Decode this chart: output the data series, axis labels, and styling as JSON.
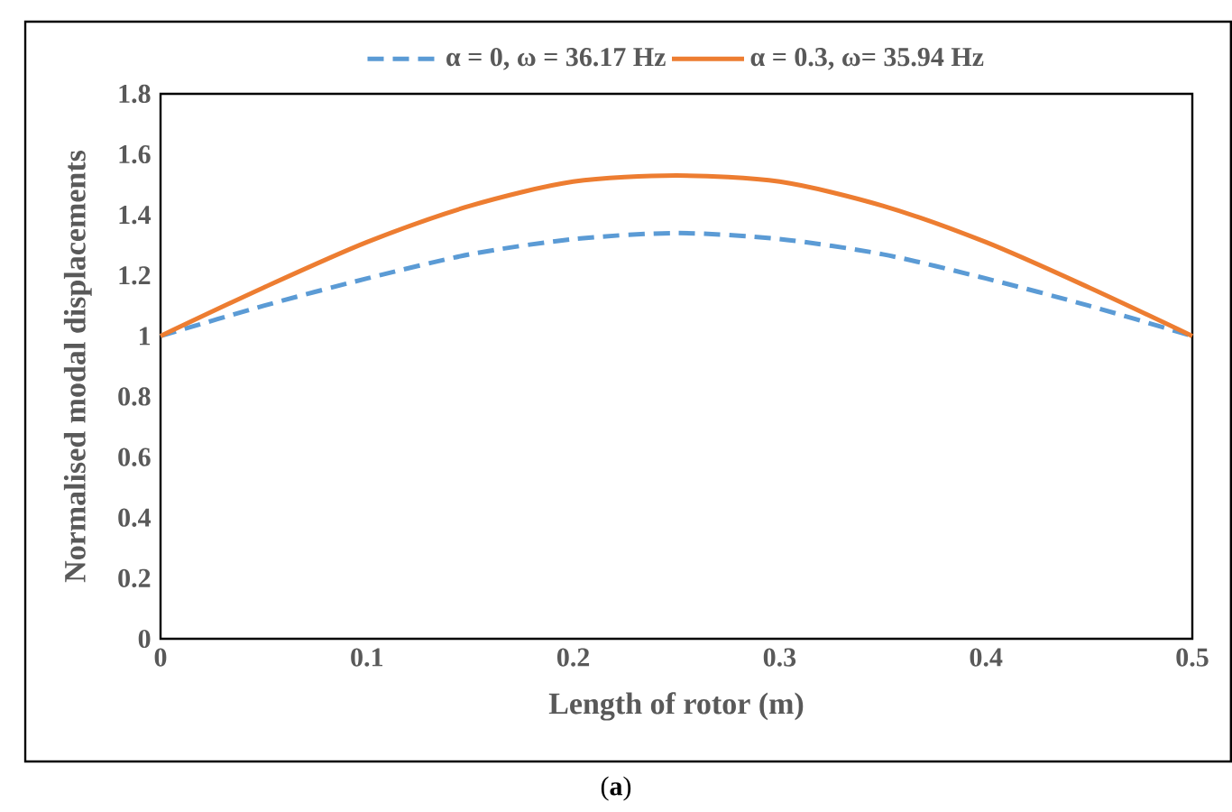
{
  "chart_data": {
    "type": "line",
    "xlabel": "Length of rotor (m)",
    "ylabel": "Normalised modal displacements",
    "x": [
      0,
      0.05,
      0.1,
      0.15,
      0.2,
      0.25,
      0.3,
      0.35,
      0.4,
      0.45,
      0.5
    ],
    "series": [
      {
        "name": "α = 0, ω = 36.17 Hz",
        "color": "#5b9bd5",
        "line_style": "dashed",
        "values": [
          1,
          1.1,
          1.19,
          1.27,
          1.32,
          1.34,
          1.32,
          1.27,
          1.19,
          1.1,
          1
        ]
      },
      {
        "name": "α = 0.3, ω= 35.94 Hz",
        "color": "#ed7d31",
        "line_style": "solid",
        "values": [
          1,
          1.16,
          1.31,
          1.43,
          1.51,
          1.53,
          1.51,
          1.43,
          1.31,
          1.16,
          1
        ]
      }
    ],
    "xlim": [
      0,
      0.5
    ],
    "ylim": [
      0,
      1.8
    ],
    "xticks": [
      0,
      0.1,
      0.2,
      0.3,
      0.4,
      0.5
    ],
    "yticks": [
      0,
      0.2,
      0.4,
      0.6,
      0.8,
      1,
      1.2,
      1.4,
      1.6,
      1.8
    ],
    "grid": false,
    "legend": "top",
    "marker": "none",
    "annotations": [
      "(**a**)"
    ]
  }
}
